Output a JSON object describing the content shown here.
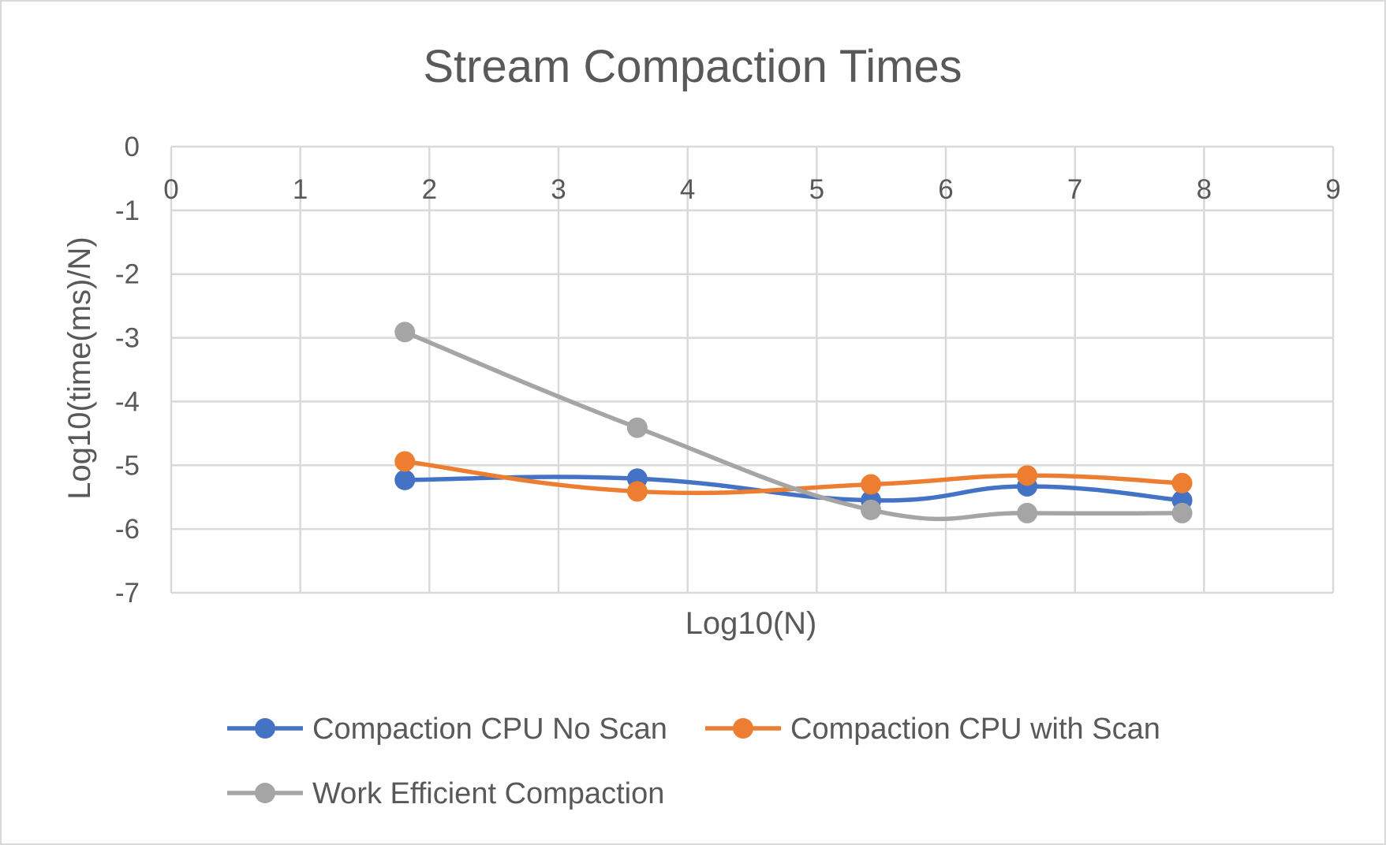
{
  "chart_data": {
    "type": "line",
    "title": "Stream Compaction Times",
    "xlabel": "Log10(N)",
    "ylabel": "Log10(time(ms)/N)",
    "xlim": [
      0,
      9
    ],
    "ylim": [
      -7,
      0
    ],
    "x_ticks": [
      0,
      1,
      2,
      3,
      4,
      5,
      6,
      7,
      8,
      9
    ],
    "y_ticks": [
      0,
      -1,
      -2,
      -3,
      -4,
      -5,
      -6,
      -7
    ],
    "grid": true,
    "smooth": true,
    "legend_position": "bottom",
    "series": [
      {
        "name": "Compaction CPU No Scan",
        "color": "#4472c4",
        "x": [
          1.81,
          3.61,
          5.42,
          6.63,
          7.83
        ],
        "y": [
          -5.23,
          -5.21,
          -5.55,
          -5.33,
          -5.55
        ]
      },
      {
        "name": "Compaction CPU with Scan",
        "color": "#ed7d31",
        "x": [
          1.81,
          3.61,
          5.42,
          6.63,
          7.83
        ],
        "y": [
          -4.94,
          -5.41,
          -5.3,
          -5.16,
          -5.28
        ]
      },
      {
        "name": "Work Efficient Compaction",
        "color": "#a5a5a5",
        "x": [
          1.81,
          3.61,
          5.42,
          6.63,
          7.83
        ],
        "y": [
          -2.91,
          -4.41,
          -5.7,
          -5.75,
          -5.75
        ]
      }
    ]
  }
}
